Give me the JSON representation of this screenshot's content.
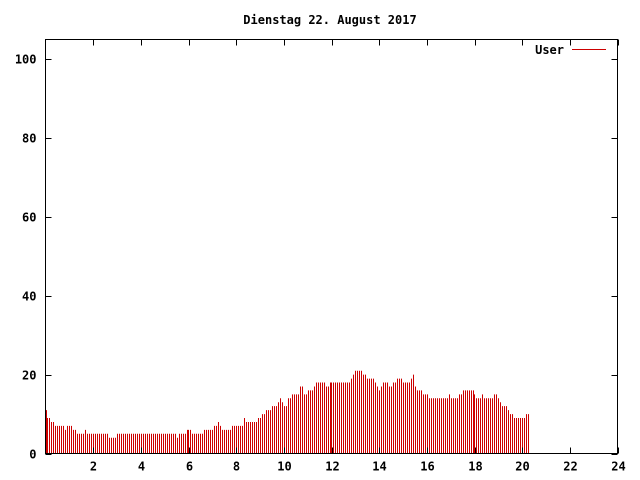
{
  "chart_data": {
    "type": "bar",
    "title": "Dienstag 22. August 2017",
    "xlabel": "",
    "ylabel": "",
    "xlim": [
      0,
      24
    ],
    "ylim": [
      0,
      105
    ],
    "x_ticks": [
      2,
      4,
      6,
      8,
      10,
      12,
      14,
      16,
      18,
      20,
      22,
      24
    ],
    "y_ticks": [
      0,
      20,
      40,
      60,
      80,
      100
    ],
    "grid": false,
    "legend_position": "top-right",
    "bar_interval_hours": 0.0833333,
    "series": [
      {
        "name": "User",
        "color": "#cc0000",
        "values": [
          11,
          9,
          9,
          8,
          8,
          7,
          7,
          7,
          7,
          7,
          6,
          7,
          7,
          7,
          6,
          6,
          5,
          5,
          5,
          5,
          6,
          5,
          5,
          5,
          5,
          5,
          5,
          5,
          5,
          5,
          5,
          5,
          4,
          4,
          4,
          4,
          5,
          5,
          5,
          5,
          5,
          5,
          5,
          5,
          5,
          5,
          5,
          5,
          5,
          5,
          5,
          5,
          5,
          5,
          5,
          5,
          5,
          5,
          5,
          5,
          5,
          5,
          5,
          5,
          5,
          5,
          4,
          5,
          5,
          5,
          5,
          6,
          6,
          6,
          5,
          5,
          5,
          5,
          5,
          5,
          6,
          6,
          6,
          6,
          6,
          7,
          7,
          8,
          7,
          6,
          6,
          6,
          6,
          6,
          7,
          7,
          7,
          7,
          7,
          7,
          9,
          8,
          8,
          8,
          8,
          8,
          8,
          9,
          9,
          10,
          10,
          11,
          11,
          11,
          12,
          12,
          12,
          13,
          14,
          13,
          12,
          12,
          14,
          14,
          15,
          15,
          15,
          15,
          17,
          17,
          15,
          15,
          16,
          16,
          16,
          17,
          18,
          18,
          18,
          18,
          18,
          17,
          17,
          18,
          18,
          18,
          18,
          18,
          18,
          18,
          18,
          18,
          18,
          18,
          19,
          20,
          21,
          21,
          21,
          21,
          20,
          20,
          19,
          19,
          19,
          19,
          18,
          17,
          16,
          17,
          18,
          18,
          18,
          17,
          17,
          18,
          18,
          19,
          19,
          19,
          18,
          18,
          18,
          18,
          19,
          20,
          17,
          16,
          16,
          16,
          15,
          15,
          15,
          14,
          14,
          14,
          14,
          14,
          14,
          14,
          14,
          14,
          14,
          15,
          14,
          14,
          14,
          14,
          15,
          15,
          16,
          16,
          16,
          16,
          16,
          16,
          15,
          14,
          14,
          14,
          15,
          14,
          14,
          14,
          14,
          14,
          15,
          15,
          14,
          13,
          12,
          12,
          12,
          11,
          10,
          10,
          9,
          9,
          9,
          9,
          9,
          9,
          10,
          10
        ]
      }
    ]
  }
}
